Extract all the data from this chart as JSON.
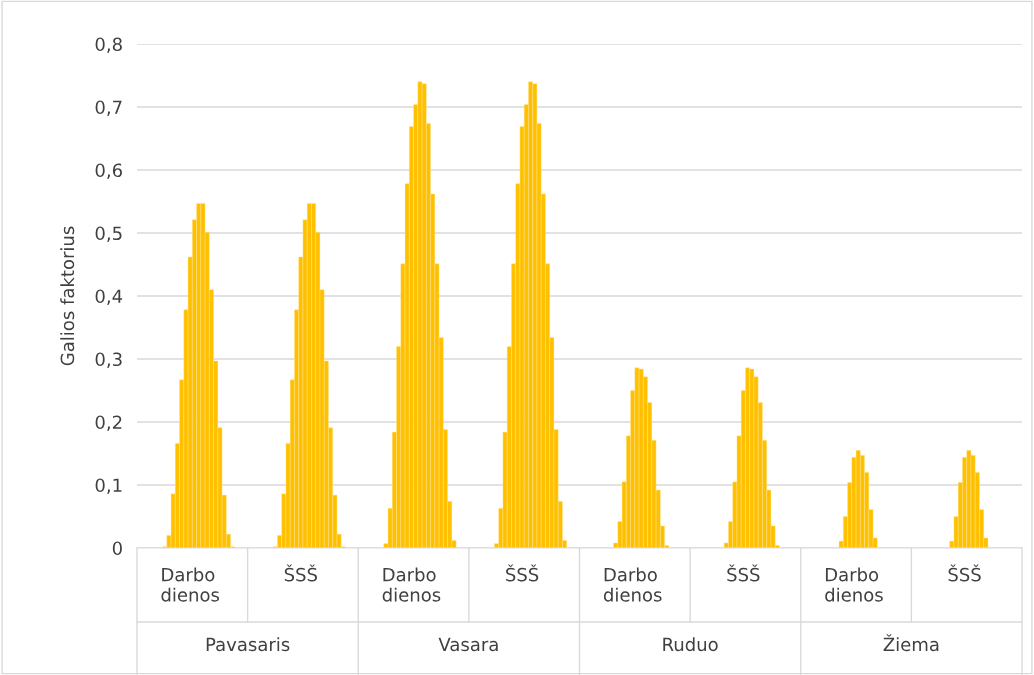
{
  "chart_data": {
    "type": "bar",
    "ylabel": "Galios faktorius",
    "color": "#ffc000",
    "categories": [
      null,
      null,
      null,
      null,
      null,
      null,
      null,
      null,
      null,
      null,
      null,
      null,
      "Darbo\ndienos",
      null,
      null,
      null,
      null,
      null,
      null,
      null,
      null,
      null,
      null,
      null,
      null,
      null,
      null,
      null,
      null,
      null,
      null,
      null,
      null,
      null,
      null,
      null,
      null,
      null,
      "ŠSŠ",
      null,
      null,
      null,
      null,
      null,
      null,
      null,
      null,
      null,
      null,
      null,
      null,
      null,
      null,
      null,
      null,
      null,
      null,
      null,
      null,
      null,
      null,
      null,
      null,
      null,
      "Darbo\ndienos",
      null,
      null,
      null,
      null,
      null,
      null,
      null,
      null,
      null,
      null,
      null,
      null,
      null,
      null,
      null,
      null,
      null,
      null,
      null,
      null,
      null,
      null,
      null,
      null,
      null,
      "ŠSŠ",
      null,
      null,
      null,
      null,
      null,
      null,
      null,
      null,
      null,
      null,
      null,
      null,
      null,
      null,
      null,
      null,
      null,
      null,
      null,
      null,
      null,
      null,
      null,
      null,
      null,
      "Darbo\ndienos",
      null,
      null,
      null,
      null,
      null,
      null,
      null,
      null,
      null,
      null,
      null,
      null,
      null,
      null,
      null,
      null,
      null,
      null,
      null,
      null,
      null,
      null,
      null,
      null,
      null,
      "ŠSŠ",
      null,
      null,
      null,
      null,
      null,
      null,
      null,
      null,
      null,
      null,
      null,
      null,
      null,
      null,
      null,
      null,
      null,
      null,
      null,
      null,
      null,
      null,
      null,
      null,
      null,
      "Darbo\ndienos",
      null,
      null,
      null,
      null,
      null,
      null,
      null,
      null,
      null,
      null,
      null,
      null,
      null,
      null,
      null,
      null,
      null,
      null,
      null,
      null,
      null,
      null,
      null,
      null,
      null,
      "ŠSŠ",
      null,
      null,
      null,
      null,
      null,
      null,
      null,
      null,
      null,
      null,
      null,
      null,
      null
    ],
    "values": [
      null,
      null,
      null,
      null,
      null,
      null,
      0.002,
      0.02,
      0.086,
      0.166,
      0.267,
      0.378,
      0.462,
      0.521,
      0.547,
      0.547,
      0.501,
      0.41,
      0.297,
      0.191,
      0.084,
      0.022,
      0.002,
      null,
      null,
      null,
      null,
      null,
      null,
      null,
      null,
      null,
      0.002,
      0.02,
      0.086,
      0.166,
      0.267,
      0.378,
      0.462,
      0.521,
      0.547,
      0.547,
      0.501,
      0.41,
      0.297,
      0.191,
      0.084,
      0.022,
      0.002,
      null,
      null,
      null,
      null,
      null,
      null,
      null,
      null,
      null,
      0.007,
      0.063,
      0.184,
      0.32,
      0.451,
      0.578,
      0.669,
      0.704,
      0.74,
      0.737,
      0.674,
      0.562,
      0.451,
      0.334,
      0.188,
      0.074,
      0.012,
      null,
      null,
      null,
      null,
      null,
      null,
      null,
      null,
      null,
      0.007,
      0.063,
      0.184,
      0.32,
      0.451,
      0.578,
      0.669,
      0.704,
      0.74,
      0.737,
      0.674,
      0.562,
      0.451,
      0.334,
      0.188,
      0.074,
      0.012,
      null,
      null,
      null,
      null,
      null,
      null,
      null,
      null,
      null,
      null,
      null,
      0.008,
      0.042,
      0.105,
      0.178,
      0.25,
      0.286,
      0.284,
      0.272,
      0.231,
      0.171,
      0.092,
      0.035,
      0.004,
      null,
      null,
      null,
      null,
      null,
      null,
      null,
      null,
      null,
      null,
      null,
      null,
      null,
      0.008,
      0.042,
      0.105,
      0.178,
      0.25,
      0.286,
      0.284,
      0.272,
      0.231,
      0.171,
      0.092,
      0.035,
      0.004,
      null,
      null,
      null,
      null,
      null,
      null,
      null,
      null,
      null,
      null,
      null,
      null,
      null,
      null,
      0.011,
      0.05,
      0.104,
      0.144,
      0.155,
      0.147,
      0.12,
      0.061,
      0.016,
      null,
      null,
      null,
      null,
      null,
      null,
      null,
      null,
      null,
      null,
      null,
      null,
      null,
      null,
      null,
      null,
      null,
      0.011,
      0.05,
      0.104,
      0.144,
      0.155,
      0.147,
      0.12,
      0.061,
      0.016,
      null,
      null,
      null,
      null,
      null,
      null,
      null,
      null
    ],
    "ylim": [
      0,
      0.8
    ],
    "yticks": [
      0,
      {
        "value": 0.1,
        "label": "0,1"
      },
      {
        "value": 0.2,
        "label": "0,2"
      },
      {
        "value": 0.3,
        "label": "0,3"
      },
      {
        "value": 0.4,
        "label": "0,4"
      },
      {
        "value": 0.5,
        "label": "0,5"
      },
      {
        "value": 0.6,
        "label": "0,6"
      },
      {
        "value": 0.7,
        "label": "0,7"
      },
      {
        "value": 0.8,
        "label": "0,8"
      }
    ],
    "grid": "y",
    "annotations": [
      "Pavasaris",
      "Vasara",
      "Ruduo",
      "Žiema"
    ]
  }
}
